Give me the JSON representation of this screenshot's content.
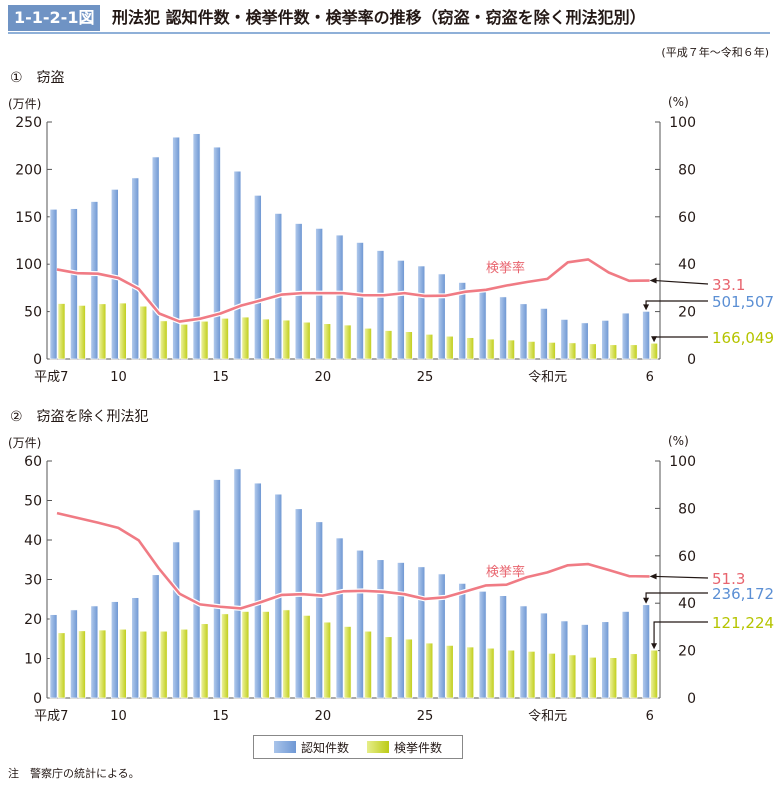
{
  "header": {
    "figure_number": "1-1-2-1図",
    "title": "刑法犯 認知件数・検挙件数・検挙率の推移（窃盗・窃盗を除く刑法犯別）",
    "period": "(平成７年〜令和６年)"
  },
  "legend": {
    "recognized": "認知件数",
    "cleared": "検挙件数"
  },
  "note": "注　警察庁の統計による。",
  "colors": {
    "recognized": "#7ea6dc",
    "cleared": "#c9d72c",
    "rate": "#f07b84",
    "recognized_text": "#5b8fd4",
    "cleared_text": "#b5c400",
    "rate_text": "#e8646e"
  },
  "chart_data": [
    {
      "type": "bar+line",
      "title": "①　窃盗",
      "left_unit": "(万件)",
      "right_unit": "(%)",
      "ylim": [
        0,
        250
      ],
      "yticks": [
        "0",
        "50",
        "100",
        "150",
        "200",
        "250"
      ],
      "ylim_right": [
        0,
        100
      ],
      "yticks_right": [
        "0",
        "20",
        "40",
        "60",
        "80",
        "100"
      ],
      "xtick_labels": [
        {
          "index": 0,
          "label": "平成7"
        },
        {
          "index": 3,
          "label": "10"
        },
        {
          "index": 8,
          "label": "15"
        },
        {
          "index": 13,
          "label": "20"
        },
        {
          "index": 18,
          "label": "25"
        },
        {
          "index": 24,
          "label": "令和元"
        },
        {
          "index": 29,
          "label": "6"
        }
      ],
      "rate_label": "検挙率",
      "series": [
        {
          "name": "認知件数",
          "values": [
            157.9,
            158.6,
            166.1,
            178.9,
            191.0,
            213.1,
            234.0,
            237.7,
            223.5,
            198.1,
            172.6,
            153.5,
            142.9,
            137.7,
            130.7,
            122.9,
            114.4,
            104.0,
            98.1,
            89.7,
            80.7,
            72.3,
            65.5,
            58.2,
            53.3,
            41.7,
            38.1,
            40.7,
            48.4,
            50.2
          ]
        },
        {
          "name": "検挙件数",
          "values": [
            58.5,
            56.5,
            58.2,
            59.0,
            55.7,
            40.2,
            36.6,
            39.8,
            42.9,
            44.2,
            42.1,
            41.0,
            38.8,
            37.2,
            35.8,
            32.4,
            30.0,
            28.8,
            26.0,
            24.0,
            22.5,
            21.0,
            20.0,
            18.5,
            17.5,
            17.0,
            16.0,
            15.0,
            15.0,
            16.6
          ]
        },
        {
          "name": "検挙率",
          "axis": "right",
          "values": [
            37.8,
            36.2,
            36.0,
            34.2,
            29.6,
            19.2,
            15.8,
            17.0,
            19.2,
            22.5,
            24.8,
            27.2,
            27.8,
            27.8,
            27.8,
            26.9,
            26.9,
            27.8,
            26.6,
            26.7,
            28.4,
            29.2,
            31.0,
            32.5,
            33.8,
            40.8,
            42.0,
            36.5,
            33.0,
            33.1
          ]
        }
      ],
      "end_labels": {
        "rate": "33.1",
        "recognized": "501,507",
        "cleared": "166,049"
      }
    },
    {
      "type": "bar+line",
      "title": "②　窃盗を除く刑法犯",
      "left_unit": "(万件)",
      "right_unit": "(%)",
      "ylim": [
        0,
        60
      ],
      "yticks": [
        "0",
        "10",
        "20",
        "30",
        "40",
        "50",
        "60"
      ],
      "ylim_right": [
        0,
        100
      ],
      "yticks_right": [
        "0",
        "20",
        "40",
        "60",
        "80",
        "100"
      ],
      "xtick_labels": [
        {
          "index": 0,
          "label": "平成7"
        },
        {
          "index": 3,
          "label": "10"
        },
        {
          "index": 8,
          "label": "15"
        },
        {
          "index": 13,
          "label": "20"
        },
        {
          "index": 18,
          "label": "25"
        },
        {
          "index": 24,
          "label": "令和元"
        },
        {
          "index": 29,
          "label": "6"
        }
      ],
      "rate_label": "検挙率",
      "series": [
        {
          "name": "認知件数",
          "values": [
            21.1,
            22.3,
            23.3,
            24.4,
            25.4,
            31.2,
            39.5,
            47.6,
            55.3,
            58.0,
            54.4,
            51.6,
            47.9,
            44.6,
            40.5,
            37.4,
            35.0,
            34.3,
            33.2,
            31.4,
            29.0,
            27.0,
            25.9,
            23.3,
            21.5,
            19.5,
            18.6,
            19.3,
            21.9,
            23.6
          ]
        },
        {
          "name": "検挙件数",
          "values": [
            16.5,
            17.0,
            17.2,
            17.4,
            16.9,
            16.9,
            17.4,
            18.8,
            21.3,
            21.9,
            21.9,
            22.3,
            20.9,
            19.2,
            18.1,
            16.9,
            15.5,
            14.9,
            13.9,
            13.3,
            12.9,
            12.6,
            12.1,
            11.8,
            11.3,
            10.9,
            10.3,
            10.2,
            11.2,
            12.1
          ]
        },
        {
          "name": "検挙率",
          "axis": "right",
          "values": [
            78.0,
            76.0,
            74.0,
            71.8,
            66.5,
            54.5,
            44.0,
            39.5,
            38.5,
            37.8,
            40.5,
            43.5,
            43.8,
            43.2,
            45.0,
            45.2,
            44.8,
            43.8,
            41.8,
            42.5,
            45.0,
            47.5,
            47.8,
            51.0,
            53.0,
            56.0,
            56.5,
            54.0,
            51.4,
            51.3
          ]
        }
      ],
      "end_labels": {
        "rate": "51.3",
        "recognized": "236,172",
        "cleared": "121,224"
      }
    }
  ]
}
